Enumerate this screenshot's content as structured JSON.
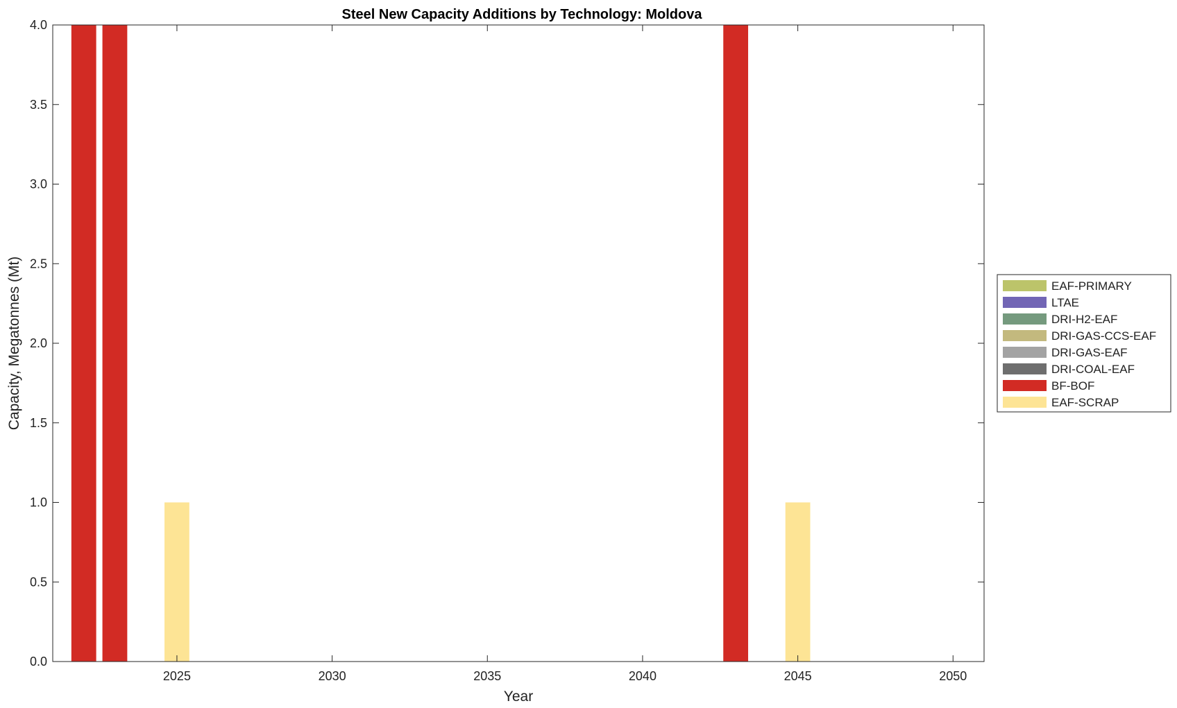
{
  "chart_data": {
    "type": "bar",
    "stacked": true,
    "title": "Steel New Capacity Additions by Technology: Moldova",
    "xlabel": "Year",
    "ylabel": "Capacity, Megatonnes (Mt)",
    "xlim": [
      2021,
      2051
    ],
    "ylim": [
      0,
      4.0
    ],
    "x_ticks": [
      2025,
      2030,
      2035,
      2040,
      2045,
      2050
    ],
    "y_ticks": [
      "0.0",
      "0.5",
      "1.0",
      "1.5",
      "2.0",
      "2.5",
      "3.0",
      "3.5",
      "4.0"
    ],
    "grid": false,
    "legend_position": "right",
    "series": [
      {
        "name": "EAF-PRIMARY",
        "color": "#bcc46a",
        "points": []
      },
      {
        "name": "LTAE",
        "color": "#7266b5",
        "points": []
      },
      {
        "name": "DRI-H2-EAF",
        "color": "#759a7e",
        "points": []
      },
      {
        "name": "DRI-GAS-CCS-EAF",
        "color": "#c3b97e",
        "points": []
      },
      {
        "name": "DRI-GAS-EAF",
        "color": "#a3a3a3",
        "points": []
      },
      {
        "name": "DRI-COAL-EAF",
        "color": "#6e6e6e",
        "points": []
      },
      {
        "name": "BF-BOF",
        "color": "#d22b24",
        "points": [
          {
            "x": 2022,
            "y": 4.0
          },
          {
            "x": 2023,
            "y": 4.0
          },
          {
            "x": 2043,
            "y": 4.0
          }
        ]
      },
      {
        "name": "EAF-SCRAP",
        "color": "#fde495",
        "points": [
          {
            "x": 2025,
            "y": 1.0
          },
          {
            "x": 2045,
            "y": 1.0
          }
        ]
      }
    ]
  }
}
